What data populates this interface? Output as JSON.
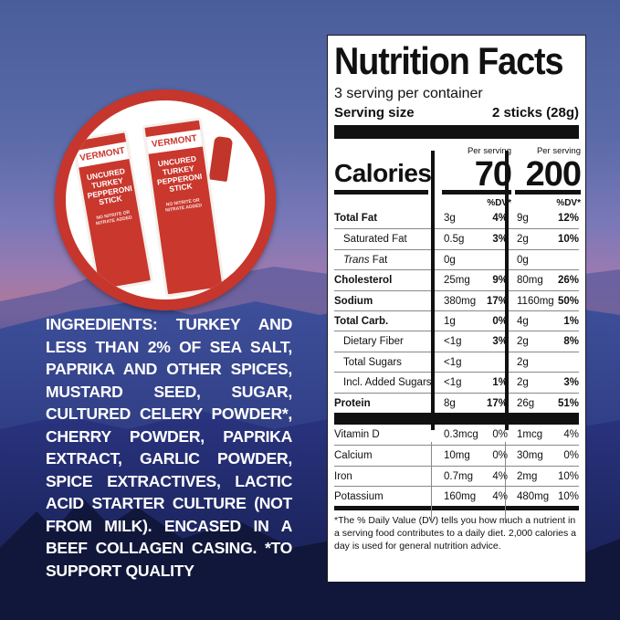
{
  "product": {
    "pack_brand": "VERMONT",
    "pack_text": "UNCURED TURKEY PEPPERONI STICK",
    "pack_small": "NO NITRITE OR NITRATE ADDED"
  },
  "ingredients": "INGREDIENTS: TURKEY AND LESS THAN 2% OF SEA SALT, PAPRIKA AND OTHER SPICES, MUSTARD SEED, SUGAR, CULTURED CELERY POWDER*, CHERRY POWDER, PAPRIKA EXTRACT, GARLIC POWDER, SPICE EXTRACTIVES, LACTIC ACID STARTER CULTURE (NOT FROM MILK). ENCASED IN A BEEF COLLAGEN CASING. *TO SUPPORT QUALITY",
  "label": {
    "title": "Nutrition Facts",
    "servings": "3 serving per container",
    "serving_size_label": "Serving size",
    "serving_size_value": "2 sticks (28g)",
    "per_serving": "Per serving",
    "calories_label": "Calories",
    "calories_1": "70",
    "calories_2": "200",
    "dv_header": "%DV*",
    "nutrients": [
      {
        "name": "Total Fat",
        "a1": "3g",
        "p1": "4%",
        "a2": "9g",
        "p2": "12%"
      },
      {
        "name": "Saturated Fat",
        "a1": "0.5g",
        "p1": "3%",
        "a2": "2g",
        "p2": "10%"
      },
      {
        "name_em": "Trans",
        "name": " Fat",
        "a1": "0g",
        "p1": "",
        "a2": "0g",
        "p2": ""
      },
      {
        "name": "Cholesterol",
        "a1": "25mg",
        "p1": "9%",
        "a2": "80mg",
        "p2": "26%"
      },
      {
        "name": "Sodium",
        "a1": "380mg",
        "p1": "17%",
        "a2": "1160mg",
        "p2": "50%"
      },
      {
        "name": "Total Carb.",
        "a1": "1g",
        "p1": "0%",
        "a2": "4g",
        "p2": "1%"
      },
      {
        "name": "Dietary Fiber",
        "a1": "<1g",
        "p1": "3%",
        "a2": "2g",
        "p2": "8%"
      },
      {
        "name": "Total Sugars",
        "a1": "<1g",
        "p1": "",
        "a2": "2g",
        "p2": ""
      },
      {
        "name": "Incl. Added Sugars",
        "a1": "<1g",
        "p1": "1%",
        "a2": "2g",
        "p2": "3%"
      },
      {
        "name": "Protein",
        "a1": "8g",
        "p1": "17%",
        "a2": "26g",
        "p2": "51%"
      }
    ],
    "vitamins": [
      {
        "name": "Vitamin D",
        "a1": "0.3mcg",
        "p1": "0%",
        "a2": "1mcg",
        "p2": "4%"
      },
      {
        "name": "Calcium",
        "a1": "10mg",
        "p1": "0%",
        "a2": "30mg",
        "p2": "0%"
      },
      {
        "name": "Iron",
        "a1": "0.7mg",
        "p1": "4%",
        "a2": "2mg",
        "p2": "10%"
      },
      {
        "name": "Potassium",
        "a1": "160mg",
        "p1": "4%",
        "a2": "480mg",
        "p2": "10%"
      }
    ],
    "footnote": "*The % Daily Value (DV) tells you how much a nutrient in a serving food contributes to a daily diet. 2,000 calories a day is used for general nutrition advice."
  }
}
